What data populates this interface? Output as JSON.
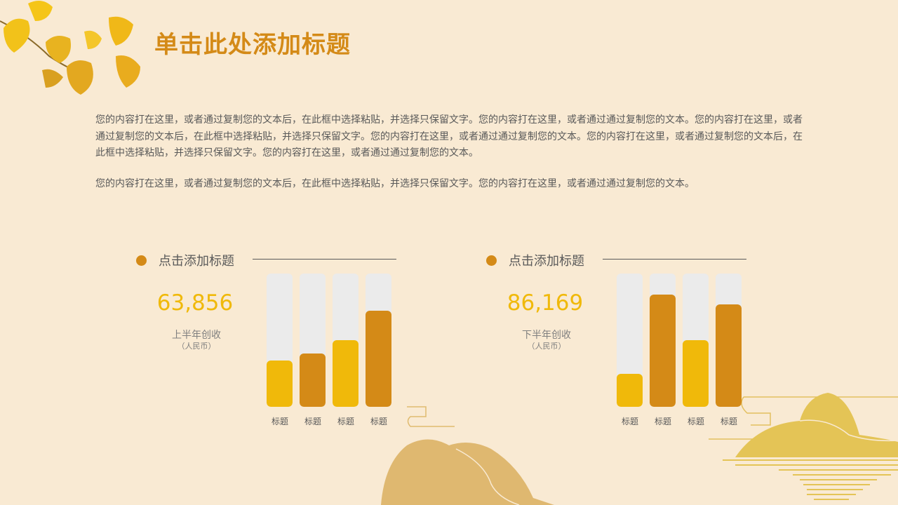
{
  "title": "单击此处添加标题",
  "paragraphs": [
    "您的内容打在这里，或者通过复制您的文本后，在此框中选择粘贴，并选择只保留文字。您的内容打在这里，或者通过通过复制您的文本。您的内容打在这里，或者通过复制您的文本后，在此框中选择粘贴，并选择只保留文字。您的内容打在这里，或者通过通过复制您的文本。您的内容打在这里，或者通过复制您的文本后，在此框中选择粘贴，并选择只保留文字。您的内容打在这里，或者通过通过复制您的文本。",
    "您的内容打在这里，或者通过复制您的文本后，在此框中选择粘贴，并选择只保留文字。您的内容打在这里，或者通过通过复制您的文本。"
  ],
  "colors": {
    "background": "#f9ead3",
    "accent_dark": "#d48a17",
    "accent_light": "#f0b90a",
    "track": "#ebebeb"
  },
  "panels": [
    {
      "heading": "点击添加标题",
      "value": "63,856",
      "label": "上半年创收",
      "unit": "（人民币）"
    },
    {
      "heading": "点击添加标题",
      "value": "86,169",
      "label": "下半年创收",
      "unit": "（人民币）"
    }
  ],
  "chart_data": [
    {
      "type": "bar",
      "categories": [
        "标题",
        "标题",
        "标题",
        "标题"
      ],
      "values": [
        0.35,
        0.4,
        0.5,
        0.72
      ],
      "ylim": [
        0,
        1
      ],
      "colors": [
        "#f0b90a",
        "#d48a17",
        "#f0b90a",
        "#d48a17"
      ],
      "grid": false
    },
    {
      "type": "bar",
      "categories": [
        "标题",
        "标题",
        "标题",
        "标题"
      ],
      "values": [
        0.25,
        0.84,
        0.5,
        0.77
      ],
      "ylim": [
        0,
        1
      ],
      "colors": [
        "#f0b90a",
        "#d48a17",
        "#f0b90a",
        "#d48a17"
      ],
      "grid": false
    }
  ]
}
